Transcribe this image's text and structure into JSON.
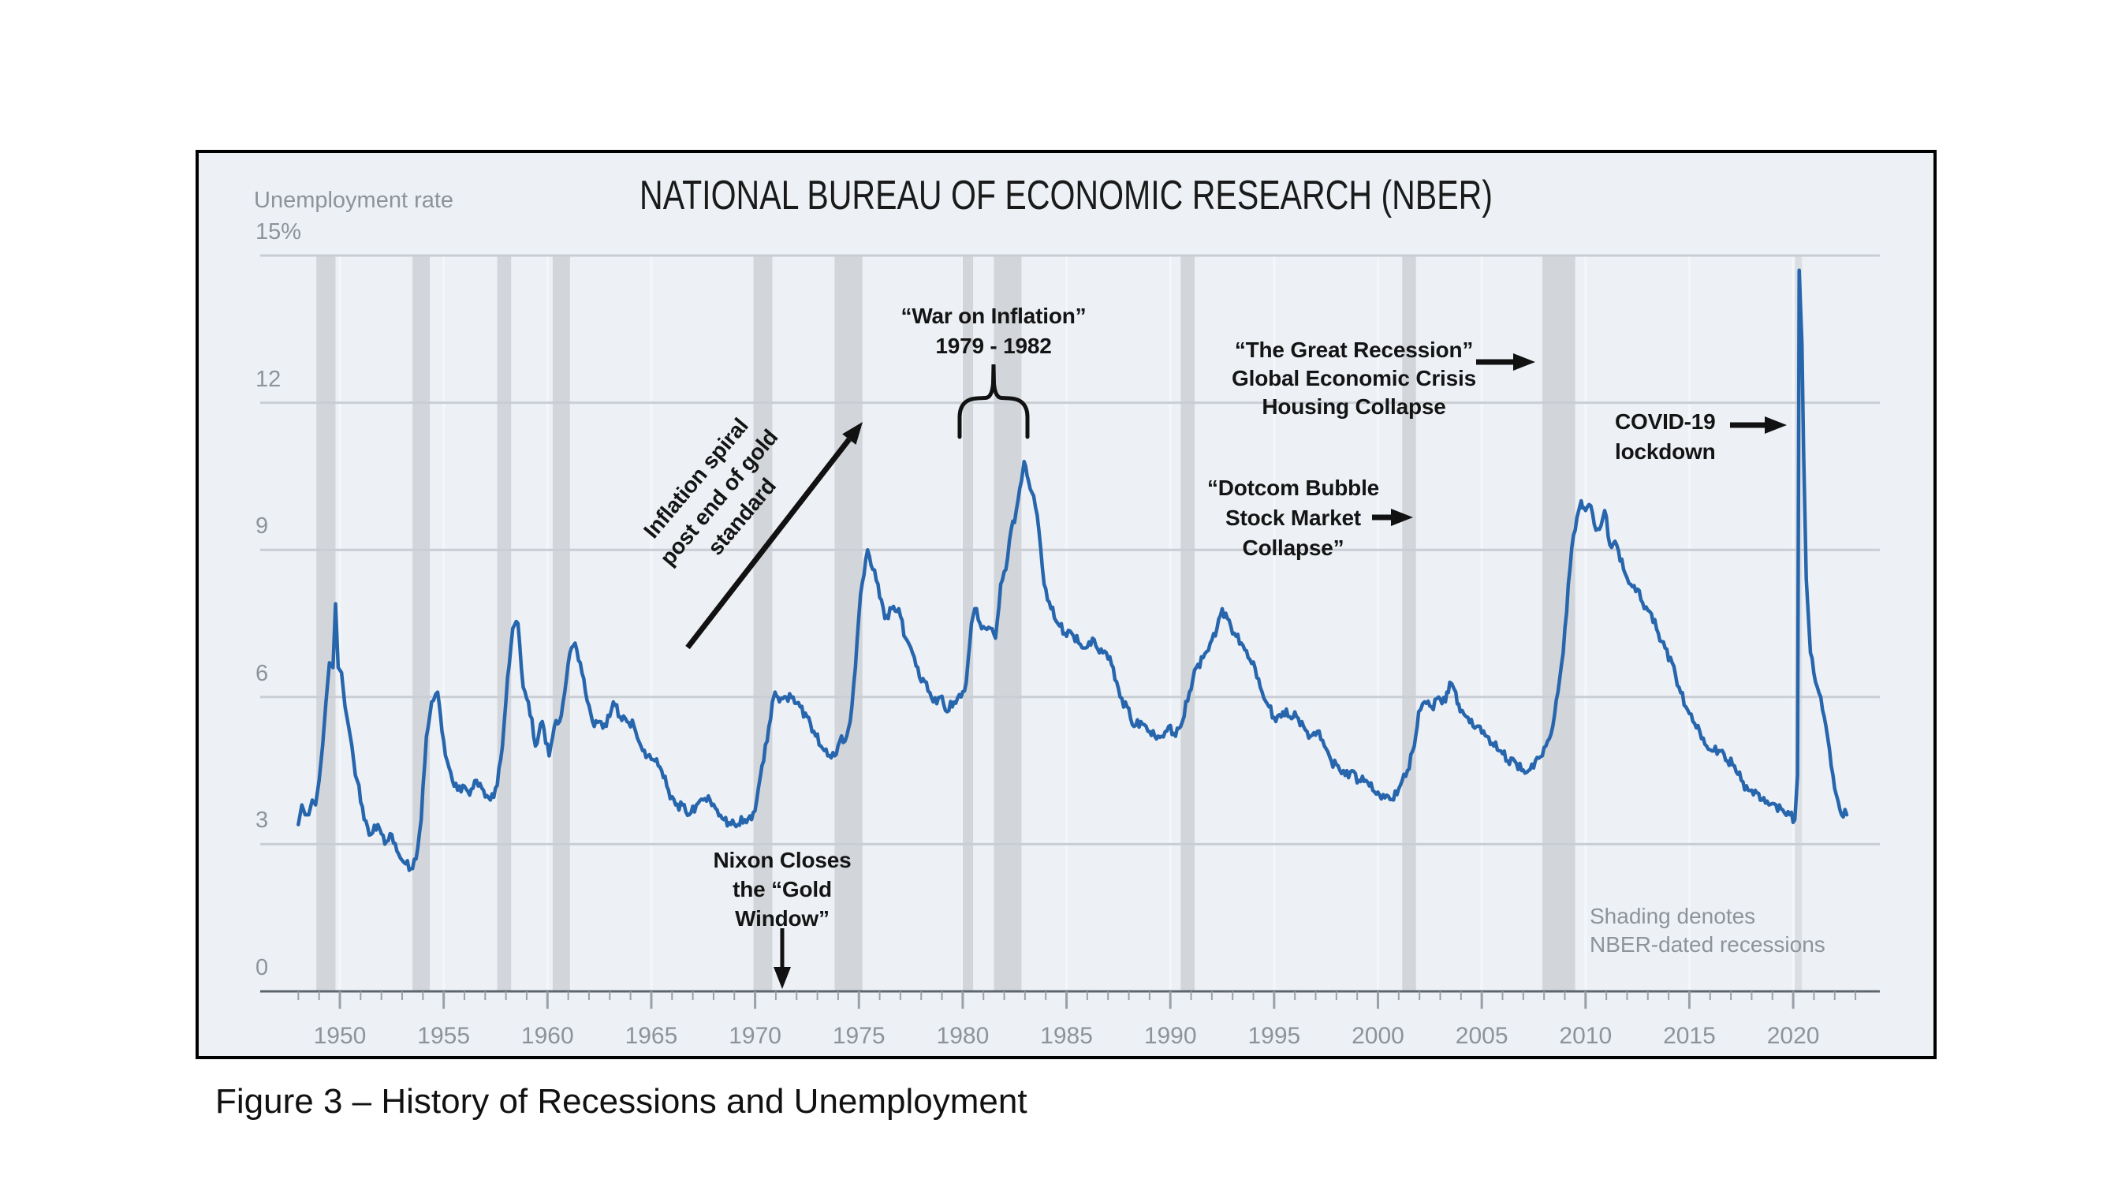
{
  "title": "NATIONAL BUREAU OF ECONOMIC RESEARCH (NBER)",
  "caption": "Figure 3 – History of Recessions and Unemployment",
  "y_axis": {
    "label": "Unemployment rate",
    "tick_labels": [
      "15%",
      "12",
      "9",
      "6",
      "3",
      "0"
    ],
    "tick_values": [
      15,
      12,
      9,
      6,
      3,
      0
    ]
  },
  "x_axis": {
    "tick_labels": [
      "1950",
      "1955",
      "1960",
      "1965",
      "1970",
      "1975",
      "1980",
      "1985",
      "1990",
      "1995",
      "2000",
      "2005",
      "2010",
      "2015",
      "2020"
    ],
    "tick_values": [
      1950,
      1955,
      1960,
      1965,
      1970,
      1975,
      1980,
      1985,
      1990,
      1995,
      2000,
      2005,
      2010,
      2015,
      2020
    ]
  },
  "notes": {
    "shading_line1": "Shading denotes",
    "shading_line2": "NBER-dated recessions"
  },
  "annotations": {
    "war": {
      "line1": "“War on Inflation”",
      "line2": "1979 - 1982"
    },
    "great_recession": {
      "line1": "“The Great Recession”",
      "line2": "Global Economic Crisis",
      "line3": "Housing Collapse"
    },
    "dotcom": {
      "line1": "“Dotcom Bubble",
      "line2": "Stock Market",
      "line3": "Collapse”"
    },
    "covid": {
      "line1": "COVID-19",
      "line2": "lockdown"
    },
    "nixon": {
      "line1": "Nixon Closes",
      "line2": "the “Gold",
      "line3": "Window”"
    },
    "inflation": {
      "line1": "Inflation spiral",
      "line2": "post end of gold",
      "line3": "standard"
    }
  },
  "chart_data": {
    "type": "line",
    "title": "NATIONAL BUREAU OF ECONOMIC RESEARCH (NBER)",
    "ylabel": "Unemployment rate",
    "xlabel": "",
    "ylim": [
      0,
      15
    ],
    "xlim": [
      1946.2,
      2024.2
    ],
    "grid": true,
    "legend": "none",
    "line_color": "#2766ad",
    "recession_band_color": "#d2d5d9",
    "recessions": [
      [
        1948.87,
        1949.79
      ],
      [
        1953.5,
        1954.33
      ],
      [
        1957.58,
        1958.25
      ],
      [
        1960.25,
        1961.08
      ],
      [
        1969.92,
        1970.83
      ],
      [
        1973.83,
        1975.17
      ],
      [
        1980.0,
        1980.5
      ],
      [
        1981.5,
        1982.83
      ],
      [
        1990.5,
        1991.17
      ],
      [
        2001.17,
        2001.83
      ],
      [
        2007.92,
        2009.5
      ],
      [
        2020.08,
        2020.33
      ]
    ],
    "series": [
      {
        "name": "Unemployment rate",
        "points": [
          [
            1948.0,
            3.4
          ],
          [
            1948.17,
            3.8
          ],
          [
            1948.33,
            3.6
          ],
          [
            1948.5,
            3.6
          ],
          [
            1948.67,
            3.9
          ],
          [
            1948.83,
            3.8
          ],
          [
            1949.0,
            4.3
          ],
          [
            1949.17,
            5.0
          ],
          [
            1949.33,
            5.9
          ],
          [
            1949.5,
            6.7
          ],
          [
            1949.67,
            6.6
          ],
          [
            1949.79,
            7.9
          ],
          [
            1949.92,
            6.6
          ],
          [
            1950.08,
            6.5
          ],
          [
            1950.25,
            5.8
          ],
          [
            1950.42,
            5.4
          ],
          [
            1950.58,
            5.0
          ],
          [
            1950.75,
            4.4
          ],
          [
            1950.92,
            4.2
          ],
          [
            1951.17,
            3.5
          ],
          [
            1951.5,
            3.2
          ],
          [
            1951.83,
            3.4
          ],
          [
            1952.17,
            3.0
          ],
          [
            1952.5,
            3.2
          ],
          [
            1952.83,
            2.8
          ],
          [
            1953.17,
            2.6
          ],
          [
            1953.42,
            2.5
          ],
          [
            1953.67,
            2.7
          ],
          [
            1953.92,
            3.5
          ],
          [
            1954.17,
            5.2
          ],
          [
            1954.42,
            5.9
          ],
          [
            1954.71,
            6.1
          ],
          [
            1954.92,
            5.3
          ],
          [
            1955.17,
            4.7
          ],
          [
            1955.42,
            4.3
          ],
          [
            1955.67,
            4.1
          ],
          [
            1955.92,
            4.2
          ],
          [
            1956.25,
            4.0
          ],
          [
            1956.58,
            4.3
          ],
          [
            1956.92,
            4.1
          ],
          [
            1957.25,
            3.9
          ],
          [
            1957.58,
            4.2
          ],
          [
            1957.83,
            5.0
          ],
          [
            1958.08,
            6.4
          ],
          [
            1958.33,
            7.4
          ],
          [
            1958.58,
            7.5
          ],
          [
            1958.83,
            6.2
          ],
          [
            1959.08,
            5.9
          ],
          [
            1959.42,
            5.0
          ],
          [
            1959.75,
            5.5
          ],
          [
            1960.08,
            4.8
          ],
          [
            1960.33,
            5.4
          ],
          [
            1960.58,
            5.5
          ],
          [
            1960.83,
            6.1
          ],
          [
            1961.08,
            6.9
          ],
          [
            1961.33,
            7.1
          ],
          [
            1961.58,
            6.7
          ],
          [
            1961.83,
            6.1
          ],
          [
            1962.17,
            5.5
          ],
          [
            1962.5,
            5.5
          ],
          [
            1962.83,
            5.4
          ],
          [
            1963.17,
            5.9
          ],
          [
            1963.5,
            5.6
          ],
          [
            1963.83,
            5.5
          ],
          [
            1964.17,
            5.4
          ],
          [
            1964.5,
            5.0
          ],
          [
            1964.83,
            4.8
          ],
          [
            1965.17,
            4.7
          ],
          [
            1965.5,
            4.5
          ],
          [
            1965.83,
            4.1
          ],
          [
            1966.17,
            3.8
          ],
          [
            1966.5,
            3.8
          ],
          [
            1966.83,
            3.6
          ],
          [
            1967.17,
            3.8
          ],
          [
            1967.5,
            3.9
          ],
          [
            1967.83,
            3.9
          ],
          [
            1968.17,
            3.7
          ],
          [
            1968.5,
            3.5
          ],
          [
            1968.83,
            3.4
          ],
          [
            1969.17,
            3.4
          ],
          [
            1969.5,
            3.5
          ],
          [
            1969.83,
            3.5
          ],
          [
            1970.08,
            3.9
          ],
          [
            1970.33,
            4.6
          ],
          [
            1970.58,
            5.1
          ],
          [
            1970.83,
            5.9
          ],
          [
            1970.96,
            6.1
          ],
          [
            1971.17,
            5.9
          ],
          [
            1971.5,
            6.0
          ],
          [
            1971.83,
            6.0
          ],
          [
            1972.17,
            5.8
          ],
          [
            1972.5,
            5.6
          ],
          [
            1972.83,
            5.3
          ],
          [
            1973.17,
            5.0
          ],
          [
            1973.5,
            4.8
          ],
          [
            1973.83,
            4.8
          ],
          [
            1974.08,
            5.1
          ],
          [
            1974.33,
            5.1
          ],
          [
            1974.58,
            5.5
          ],
          [
            1974.83,
            6.6
          ],
          [
            1975.08,
            8.1
          ],
          [
            1975.33,
            8.8
          ],
          [
            1975.42,
            9.0
          ],
          [
            1975.67,
            8.6
          ],
          [
            1975.92,
            8.3
          ],
          [
            1976.25,
            7.6
          ],
          [
            1976.58,
            7.8
          ],
          [
            1976.92,
            7.8
          ],
          [
            1977.25,
            7.2
          ],
          [
            1977.58,
            6.9
          ],
          [
            1977.92,
            6.4
          ],
          [
            1978.25,
            6.3
          ],
          [
            1978.58,
            5.9
          ],
          [
            1978.92,
            6.0
          ],
          [
            1979.25,
            5.7
          ],
          [
            1979.58,
            5.9
          ],
          [
            1979.92,
            6.0
          ],
          [
            1980.17,
            6.3
          ],
          [
            1980.42,
            7.5
          ],
          [
            1980.58,
            7.8
          ],
          [
            1980.83,
            7.5
          ],
          [
            1981.08,
            7.4
          ],
          [
            1981.33,
            7.4
          ],
          [
            1981.58,
            7.2
          ],
          [
            1981.83,
            8.3
          ],
          [
            1982.08,
            8.6
          ],
          [
            1982.33,
            9.4
          ],
          [
            1982.58,
            9.8
          ],
          [
            1982.83,
            10.4
          ],
          [
            1982.96,
            10.8
          ],
          [
            1983.17,
            10.4
          ],
          [
            1983.42,
            10.1
          ],
          [
            1983.67,
            9.4
          ],
          [
            1983.92,
            8.3
          ],
          [
            1984.25,
            7.8
          ],
          [
            1984.58,
            7.5
          ],
          [
            1984.92,
            7.3
          ],
          [
            1985.25,
            7.3
          ],
          [
            1985.58,
            7.1
          ],
          [
            1985.92,
            7.0
          ],
          [
            1986.25,
            7.2
          ],
          [
            1986.58,
            6.9
          ],
          [
            1986.92,
            6.9
          ],
          [
            1987.25,
            6.6
          ],
          [
            1987.58,
            6.0
          ],
          [
            1987.92,
            5.8
          ],
          [
            1988.25,
            5.4
          ],
          [
            1988.58,
            5.5
          ],
          [
            1988.92,
            5.3
          ],
          [
            1989.25,
            5.2
          ],
          [
            1989.58,
            5.2
          ],
          [
            1989.92,
            5.4
          ],
          [
            1990.25,
            5.2
          ],
          [
            1990.58,
            5.5
          ],
          [
            1990.92,
            6.1
          ],
          [
            1991.25,
            6.6
          ],
          [
            1991.58,
            6.8
          ],
          [
            1991.92,
            7.1
          ],
          [
            1992.25,
            7.4
          ],
          [
            1992.5,
            7.8
          ],
          [
            1992.75,
            7.6
          ],
          [
            1993.08,
            7.3
          ],
          [
            1993.42,
            7.1
          ],
          [
            1993.75,
            6.8
          ],
          [
            1994.08,
            6.6
          ],
          [
            1994.42,
            6.1
          ],
          [
            1994.75,
            5.8
          ],
          [
            1995.08,
            5.5
          ],
          [
            1995.42,
            5.7
          ],
          [
            1995.75,
            5.6
          ],
          [
            1996.08,
            5.6
          ],
          [
            1996.42,
            5.4
          ],
          [
            1996.75,
            5.2
          ],
          [
            1997.08,
            5.3
          ],
          [
            1997.42,
            5.0
          ],
          [
            1997.75,
            4.7
          ],
          [
            1998.08,
            4.6
          ],
          [
            1998.42,
            4.4
          ],
          [
            1998.75,
            4.5
          ],
          [
            1999.08,
            4.3
          ],
          [
            1999.42,
            4.3
          ],
          [
            1999.75,
            4.1
          ],
          [
            2000.08,
            4.0
          ],
          [
            2000.42,
            4.0
          ],
          [
            2000.75,
            3.9
          ],
          [
            2001.08,
            4.2
          ],
          [
            2001.42,
            4.5
          ],
          [
            2001.75,
            5.0
          ],
          [
            2001.96,
            5.7
          ],
          [
            2002.25,
            5.9
          ],
          [
            2002.58,
            5.8
          ],
          [
            2002.92,
            6.0
          ],
          [
            2003.25,
            5.9
          ],
          [
            2003.46,
            6.3
          ],
          [
            2003.75,
            6.1
          ],
          [
            2003.96,
            5.7
          ],
          [
            2004.25,
            5.6
          ],
          [
            2004.58,
            5.4
          ],
          [
            2004.92,
            5.4
          ],
          [
            2005.25,
            5.2
          ],
          [
            2005.58,
            5.0
          ],
          [
            2005.92,
            4.9
          ],
          [
            2006.25,
            4.7
          ],
          [
            2006.58,
            4.7
          ],
          [
            2006.92,
            4.5
          ],
          [
            2007.25,
            4.5
          ],
          [
            2007.58,
            4.7
          ],
          [
            2007.92,
            4.8
          ],
          [
            2008.17,
            5.1
          ],
          [
            2008.42,
            5.4
          ],
          [
            2008.67,
            6.1
          ],
          [
            2008.92,
            6.9
          ],
          [
            2009.17,
            8.3
          ],
          [
            2009.42,
            9.3
          ],
          [
            2009.67,
            9.8
          ],
          [
            2009.79,
            10.0
          ],
          [
            2010.0,
            9.8
          ],
          [
            2010.25,
            9.9
          ],
          [
            2010.5,
            9.4
          ],
          [
            2010.75,
            9.5
          ],
          [
            2010.92,
            9.8
          ],
          [
            2011.17,
            9.1
          ],
          [
            2011.5,
            9.1
          ],
          [
            2011.83,
            8.6
          ],
          [
            2012.17,
            8.3
          ],
          [
            2012.5,
            8.2
          ],
          [
            2012.83,
            7.8
          ],
          [
            2013.17,
            7.7
          ],
          [
            2013.5,
            7.3
          ],
          [
            2013.83,
            7.0
          ],
          [
            2014.17,
            6.7
          ],
          [
            2014.5,
            6.2
          ],
          [
            2014.83,
            5.8
          ],
          [
            2015.17,
            5.5
          ],
          [
            2015.5,
            5.3
          ],
          [
            2015.83,
            5.0
          ],
          [
            2016.17,
            4.9
          ],
          [
            2016.5,
            4.9
          ],
          [
            2016.83,
            4.7
          ],
          [
            2017.17,
            4.6
          ],
          [
            2017.5,
            4.3
          ],
          [
            2017.83,
            4.1
          ],
          [
            2018.17,
            4.1
          ],
          [
            2018.5,
            3.9
          ],
          [
            2018.83,
            3.8
          ],
          [
            2019.17,
            3.8
          ],
          [
            2019.5,
            3.7
          ],
          [
            2019.83,
            3.6
          ],
          [
            2020.08,
            3.5
          ],
          [
            2020.21,
            4.4
          ],
          [
            2020.29,
            14.7
          ],
          [
            2020.42,
            13.2
          ],
          [
            2020.5,
            11.0
          ],
          [
            2020.63,
            8.4
          ],
          [
            2020.83,
            6.9
          ],
          [
            2021.08,
            6.3
          ],
          [
            2021.33,
            6.0
          ],
          [
            2021.58,
            5.4
          ],
          [
            2021.83,
            4.6
          ],
          [
            2022.08,
            4.0
          ],
          [
            2022.33,
            3.6
          ],
          [
            2022.58,
            3.6
          ]
        ]
      }
    ]
  }
}
